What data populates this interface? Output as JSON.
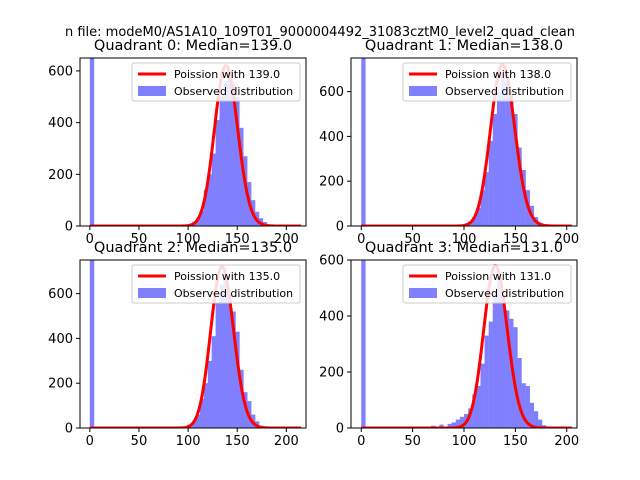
{
  "suptitle": "n file: modeM0/AS1A10_109T01_9000004492_31083cztM0_level2_quad_clean",
  "colors": {
    "hist": "#8080ff",
    "poisson": "#ff0000",
    "text": "#000000",
    "frame": "#000000"
  },
  "chart_data": [
    {
      "type": "bar",
      "title": "Quadrant 0: Median=139.0",
      "xlim": [
        -10,
        220
      ],
      "ylim": [
        0,
        650
      ],
      "xticks": [
        0,
        50,
        100,
        150,
        200
      ],
      "yticks": [
        0,
        200,
        400,
        600
      ],
      "legend": [
        "Poission with 139.0",
        "Observed distribution"
      ],
      "median": 139.0,
      "poisson_peak": 620,
      "bin_width": 4.4,
      "bins": [
        [
          0,
          650
        ],
        [
          96,
          3
        ],
        [
          100,
          8
        ],
        [
          104,
          15
        ],
        [
          108,
          30
        ],
        [
          112,
          60
        ],
        [
          116,
          140
        ],
        [
          120,
          200
        ],
        [
          124,
          280
        ],
        [
          128,
          410
        ],
        [
          132,
          500
        ],
        [
          136,
          560
        ],
        [
          140,
          600
        ],
        [
          144,
          555
        ],
        [
          148,
          500
        ],
        [
          152,
          380
        ],
        [
          156,
          270
        ],
        [
          160,
          170
        ],
        [
          164,
          100
        ],
        [
          168,
          55
        ],
        [
          172,
          30
        ],
        [
          176,
          15
        ],
        [
          180,
          6
        ],
        [
          184,
          2
        ]
      ]
    },
    {
      "type": "bar",
      "title": "Quadrant 1: Median=138.0",
      "xlim": [
        -10,
        210
      ],
      "ylim": [
        0,
        750
      ],
      "xticks": [
        0,
        50,
        100,
        150,
        200
      ],
      "yticks": [
        0,
        200,
        400,
        600
      ],
      "legend": [
        "Poission with 138.0",
        "Observed distribution"
      ],
      "median": 138.0,
      "poisson_peak": 720,
      "bin_width": 4.2,
      "bins": [
        [
          0,
          750
        ],
        [
          96,
          4
        ],
        [
          100,
          10
        ],
        [
          104,
          20
        ],
        [
          108,
          40
        ],
        [
          112,
          80
        ],
        [
          116,
          160
        ],
        [
          120,
          240
        ],
        [
          124,
          380
        ],
        [
          128,
          500
        ],
        [
          132,
          600
        ],
        [
          136,
          680
        ],
        [
          140,
          640
        ],
        [
          144,
          590
        ],
        [
          148,
          500
        ],
        [
          152,
          350
        ],
        [
          156,
          250
        ],
        [
          160,
          160
        ],
        [
          164,
          90
        ],
        [
          168,
          40
        ],
        [
          172,
          15
        ],
        [
          176,
          6
        ]
      ]
    },
    {
      "type": "bar",
      "title": "Quadrant 2: Median=135.0",
      "xlim": [
        -10,
        220
      ],
      "ylim": [
        0,
        750
      ],
      "xticks": [
        0,
        50,
        100,
        150,
        200
      ],
      "yticks": [
        0,
        200,
        400,
        600
      ],
      "legend": [
        "Poission with 135.0",
        "Observed distribution"
      ],
      "median": 135.0,
      "poisson_peak": 720,
      "bin_width": 4.5,
      "bins": [
        [
          0,
          750
        ],
        [
          96,
          5
        ],
        [
          100,
          15
        ],
        [
          104,
          30
        ],
        [
          108,
          60
        ],
        [
          112,
          130
        ],
        [
          116,
          200
        ],
        [
          120,
          300
        ],
        [
          124,
          410
        ],
        [
          128,
          560
        ],
        [
          132,
          640
        ],
        [
          136,
          670
        ],
        [
          140,
          600
        ],
        [
          144,
          520
        ],
        [
          148,
          430
        ],
        [
          152,
          260
        ],
        [
          156,
          160
        ],
        [
          160,
          120
        ],
        [
          164,
          60
        ],
        [
          168,
          30
        ],
        [
          172,
          10
        ],
        [
          176,
          4
        ]
      ]
    },
    {
      "type": "bar",
      "title": "Quadrant 3: Median=131.0",
      "xlim": [
        -10,
        210
      ],
      "ylim": [
        0,
        600
      ],
      "xticks": [
        0,
        50,
        100,
        150,
        200
      ],
      "yticks": [
        0,
        200,
        400,
        600
      ],
      "legend": [
        "Poission with 131.0",
        "Observed distribution"
      ],
      "median": 131.0,
      "poisson_peak": 580,
      "bin_width": 4.2,
      "bins": [
        [
          0,
          600
        ],
        [
          52,
          3
        ],
        [
          60,
          5
        ],
        [
          68,
          8
        ],
        [
          76,
          12
        ],
        [
          84,
          15
        ],
        [
          88,
          20
        ],
        [
          92,
          30
        ],
        [
          96,
          40
        ],
        [
          100,
          50
        ],
        [
          104,
          70
        ],
        [
          108,
          120
        ],
        [
          112,
          150
        ],
        [
          116,
          230
        ],
        [
          120,
          330
        ],
        [
          124,
          380
        ],
        [
          128,
          490
        ],
        [
          132,
          540
        ],
        [
          136,
          480
        ],
        [
          140,
          420
        ],
        [
          144,
          390
        ],
        [
          148,
          360
        ],
        [
          152,
          250
        ],
        [
          156,
          160
        ],
        [
          160,
          150
        ],
        [
          164,
          90
        ],
        [
          168,
          60
        ],
        [
          172,
          30
        ],
        [
          176,
          10
        ]
      ]
    }
  ]
}
